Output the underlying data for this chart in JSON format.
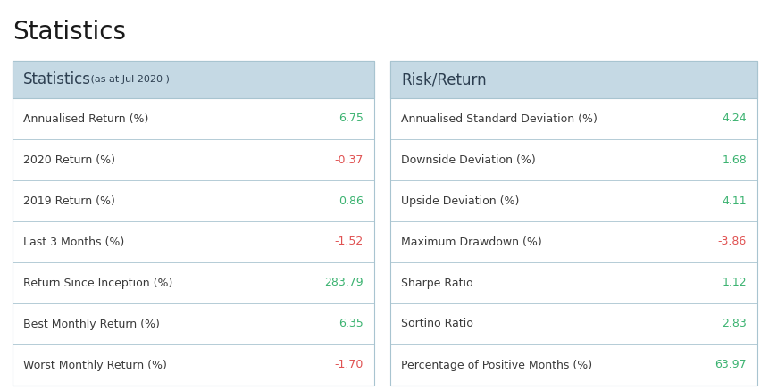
{
  "title": "Statistics",
  "left_table": {
    "header": "Statistics",
    "subheader": " (as at Jul 2020 )",
    "rows": [
      {
        "label": "Annualised Return (%)",
        "value": "6.75",
        "color": "#3cb371"
      },
      {
        "label": "2020 Return (%)",
        "value": "-0.37",
        "color": "#e05252"
      },
      {
        "label": "2019 Return (%)",
        "value": "0.86",
        "color": "#3cb371"
      },
      {
        "label": "Last 3 Months (%)",
        "value": "-1.52",
        "color": "#e05252"
      },
      {
        "label": "Return Since Inception (%)",
        "value": "283.79",
        "color": "#3cb371"
      },
      {
        "label": "Best Monthly Return (%)",
        "value": "6.35",
        "color": "#3cb371"
      },
      {
        "label": "Worst Monthly Return (%)",
        "value": "-1.70",
        "color": "#e05252"
      }
    ]
  },
  "right_table": {
    "header": "Risk/Return",
    "rows": [
      {
        "label": "Annualised Standard Deviation (%)",
        "value": "4.24",
        "color": "#3cb371"
      },
      {
        "label": "Downside Deviation (%)",
        "value": "1.68",
        "color": "#3cb371"
      },
      {
        "label": "Upside Deviation (%)",
        "value": "4.11",
        "color": "#3cb371"
      },
      {
        "label": "Maximum Drawdown (%)",
        "value": "-3.86",
        "color": "#e05252"
      },
      {
        "label": "Sharpe Ratio",
        "value": "1.12",
        "color": "#3cb371"
      },
      {
        "label": "Sortino Ratio",
        "value": "2.83",
        "color": "#3cb371"
      },
      {
        "label": "Percentage of Positive Months (%)",
        "value": "63.97",
        "color": "#3cb371"
      }
    ]
  },
  "header_bg": "#c5d9e4",
  "border_color": "#a8c4d0",
  "header_text_color": "#2c3e50",
  "label_text_color": "#3a3a3a",
  "title_color": "#1a1a1a",
  "background_color": "#ffffff",
  "title_fontsize": 20,
  "header_fontsize": 12,
  "subheader_fontsize": 8,
  "row_fontsize": 9
}
